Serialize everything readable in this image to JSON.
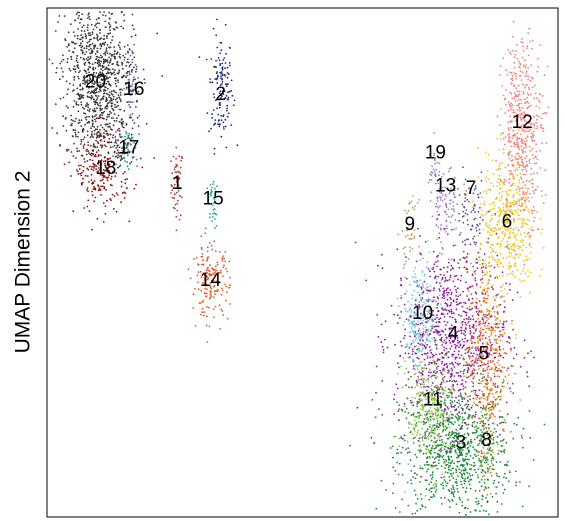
{
  "chart_data": {
    "type": "scatter",
    "title": "",
    "xlabel": "",
    "ylabel": "UMAP Dimension 2",
    "xlim": [
      0,
      10
    ],
    "ylim": [
      0,
      10
    ],
    "grid": false,
    "legend": "none",
    "series": [
      {
        "label": "1",
        "color": "#c0392b",
        "x": 2.55,
        "y": 6.55,
        "sx": 0.06,
        "sy": 0.35,
        "n": 60
      },
      {
        "label": "2",
        "color": "#1f2a7a",
        "x": 3.4,
        "y": 8.4,
        "sx": 0.12,
        "sy": 0.55,
        "n": 140
      },
      {
        "label": "3",
        "color": "#1e8a3a",
        "x": 8.0,
        "y": 1.3,
        "sx": 0.55,
        "sy": 0.65,
        "n": 900
      },
      {
        "label": "4",
        "color": "#8b1f9a",
        "x": 7.9,
        "y": 3.5,
        "sx": 0.55,
        "sy": 0.9,
        "n": 1000
      },
      {
        "label": "5",
        "color": "#e67e22",
        "x": 8.6,
        "y": 3.2,
        "sx": 0.2,
        "sy": 0.9,
        "n": 380
      },
      {
        "label": "6",
        "color": "#f1c40f",
        "x": 9.0,
        "y": 5.7,
        "sx": 0.28,
        "sy": 0.7,
        "n": 420
      },
      {
        "label": "7",
        "color": "#5d4e9e",
        "x": 8.3,
        "y": 5.8,
        "sx": 0.15,
        "sy": 0.5,
        "n": 80
      },
      {
        "label": "8",
        "color": "#9e9b2e",
        "x": 8.6,
        "y": 1.6,
        "sx": 0.12,
        "sy": 0.5,
        "n": 60
      },
      {
        "label": "9",
        "color": "#c49a5a",
        "x": 7.1,
        "y": 5.6,
        "sx": 0.08,
        "sy": 0.3,
        "n": 40
      },
      {
        "label": "10",
        "color": "#74c7dc",
        "x": 7.3,
        "y": 3.9,
        "sx": 0.18,
        "sy": 0.55,
        "n": 220
      },
      {
        "label": "11",
        "color": "#8cc63f",
        "x": 7.5,
        "y": 2.1,
        "sx": 0.22,
        "sy": 0.6,
        "n": 260
      },
      {
        "label": "12",
        "color": "#f08080",
        "x": 9.3,
        "y": 7.6,
        "sx": 0.2,
        "sy": 0.9,
        "n": 480
      },
      {
        "label": "13",
        "color": "#a77fc4",
        "x": 7.8,
        "y": 6.0,
        "sx": 0.15,
        "sy": 0.4,
        "n": 90
      },
      {
        "label": "14",
        "color": "#e05a2b",
        "x": 3.2,
        "y": 4.6,
        "sx": 0.18,
        "sy": 0.35,
        "n": 170
      },
      {
        "label": "15",
        "color": "#1fa58f",
        "x": 3.25,
        "y": 6.2,
        "sx": 0.06,
        "sy": 0.3,
        "n": 35
      },
      {
        "label": "16",
        "color": "#6b5ea8",
        "x": 1.65,
        "y": 8.6,
        "sx": 0.08,
        "sy": 0.4,
        "n": 50
      },
      {
        "label": "17",
        "color": "#1c8f9a",
        "x": 1.55,
        "y": 7.3,
        "sx": 0.12,
        "sy": 0.25,
        "n": 80
      },
      {
        "label": "18",
        "color": "#8b0f14",
        "x": 1.1,
        "y": 6.9,
        "sx": 0.28,
        "sy": 0.45,
        "n": 280
      },
      {
        "label": "19",
        "color": "#9b7ad6",
        "x": 7.6,
        "y": 6.7,
        "sx": 0.08,
        "sy": 0.3,
        "n": 40
      },
      {
        "label": "20",
        "color": "#3a3a3a",
        "x": 1.0,
        "y": 8.6,
        "sx": 0.35,
        "sy": 0.75,
        "n": 900
      }
    ],
    "labels": [
      {
        "text": "20",
        "x": 0.95,
        "y": 8.55
      },
      {
        "text": "16",
        "x": 1.7,
        "y": 8.4
      },
      {
        "text": "2",
        "x": 3.4,
        "y": 8.3
      },
      {
        "text": "17",
        "x": 1.6,
        "y": 7.25
      },
      {
        "text": "18",
        "x": 1.15,
        "y": 6.85
      },
      {
        "text": "1",
        "x": 2.55,
        "y": 6.55
      },
      {
        "text": "15",
        "x": 3.25,
        "y": 6.25
      },
      {
        "text": "14",
        "x": 3.2,
        "y": 4.65
      },
      {
        "text": "12",
        "x": 9.3,
        "y": 7.75
      },
      {
        "text": "19",
        "x": 7.6,
        "y": 7.15
      },
      {
        "text": "13",
        "x": 7.8,
        "y": 6.5
      },
      {
        "text": "7",
        "x": 8.3,
        "y": 6.45
      },
      {
        "text": "9",
        "x": 7.1,
        "y": 5.75
      },
      {
        "text": "6",
        "x": 9.0,
        "y": 5.8
      },
      {
        "text": "10",
        "x": 7.35,
        "y": 4.0
      },
      {
        "text": "4",
        "x": 7.95,
        "y": 3.6
      },
      {
        "text": "5",
        "x": 8.55,
        "y": 3.2
      },
      {
        "text": "11",
        "x": 7.55,
        "y": 2.3
      },
      {
        "text": "3",
        "x": 8.1,
        "y": 1.45
      },
      {
        "text": "8",
        "x": 8.6,
        "y": 1.5
      }
    ]
  }
}
